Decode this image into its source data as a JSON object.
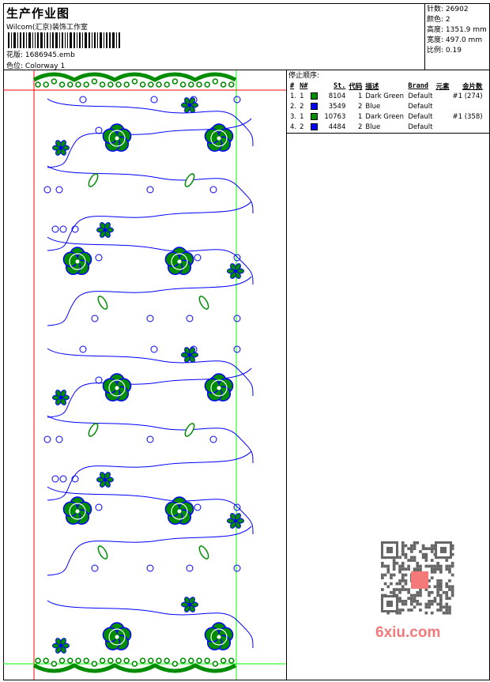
{
  "header": {
    "title": "生产作业图",
    "studio": "Wilcom(汇京)装饰工作室",
    "design_label": "花版:",
    "design_file": "1686945.emb",
    "colorway_label": "色位:",
    "colorway": "Colorway 1"
  },
  "info": [
    {
      "label": "针数:",
      "value": "26902"
    },
    {
      "label": "颜色:",
      "value": "2"
    },
    {
      "label": "高度:",
      "value": "1351.9 mm"
    },
    {
      "label": "宽度:",
      "value": "497.0 mm"
    },
    {
      "label": "比例:",
      "value": "0.19"
    }
  ],
  "stop_sequence": {
    "label": "停止顺序:",
    "columns": [
      "#",
      "N#",
      "",
      "St.",
      "代码",
      "描述",
      "Brand",
      "元素",
      "金片数"
    ],
    "rows": [
      {
        "idx": "1.",
        "n": "1",
        "color": "#008c00",
        "st": "8104",
        "code": "1",
        "desc": "Dark Green",
        "brand": "Default",
        "elem": "",
        "seq": "#1 (274)"
      },
      {
        "idx": "2.",
        "n": "2",
        "color": "#0000ff",
        "st": "3549",
        "code": "2",
        "desc": "Blue",
        "brand": "Default",
        "elem": "",
        "seq": ""
      },
      {
        "idx": "3.",
        "n": "1",
        "color": "#008c00",
        "st": "10763",
        "code": "1",
        "desc": "Dark Green",
        "brand": "Default",
        "elem": "",
        "seq": "#1 (358)"
      },
      {
        "idx": "4.",
        "n": "2",
        "color": "#0000ff",
        "st": "4484",
        "code": "2",
        "desc": "Blue",
        "brand": "Default",
        "elem": "",
        "seq": ""
      }
    ]
  },
  "watermark": "6xiu.com",
  "qr_stamp": "以图搜图",
  "colors": {
    "green": "#008c00",
    "blue": "#0000ff",
    "start_marker": "#ff0000",
    "end_marker": "#00ff00"
  }
}
